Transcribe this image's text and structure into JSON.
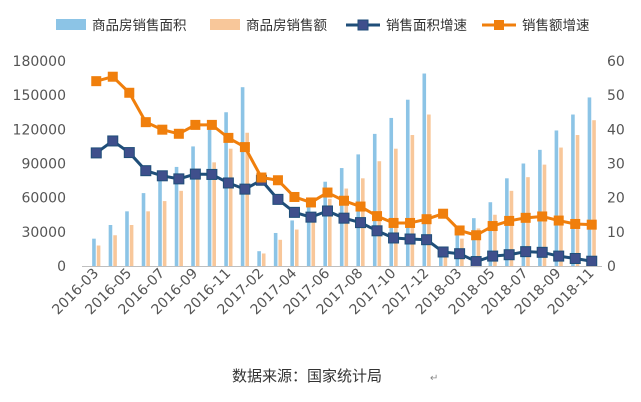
{
  "chart_data": {
    "type": "bar",
    "categories": [
      "2016-03",
      "2016-04",
      "2016-05",
      "2016-06",
      "2016-07",
      "2016-08",
      "2016-09",
      "2016-10",
      "2016-11",
      "2016-12",
      "2017-02",
      "2017-03",
      "2017-04",
      "2017-05",
      "2017-06",
      "2017-07",
      "2017-08",
      "2017-09",
      "2017-10",
      "2017-11",
      "2017-12",
      "2018-02",
      "2018-03",
      "2018-04",
      "2018-05",
      "2018-06",
      "2018-07",
      "2018-08",
      "2018-09",
      "2018-10",
      "2018-11"
    ],
    "x_tick_labels": [
      "2016-03",
      "2016-05",
      "2016-07",
      "2016-09",
      "2016-11",
      "2017-02",
      "2017-04",
      "2017-06",
      "2017-08",
      "2017-10",
      "2017-12",
      "2018-03",
      "2018-05",
      "2018-07",
      "2018-09",
      "2018-11"
    ],
    "series": [
      {
        "name": "商品房销售面积",
        "type": "bar",
        "axis": "left",
        "color": "#8cc4e6",
        "values": [
          24000,
          36000,
          48000,
          64000,
          81000,
          87000,
          105000,
          121000,
          135000,
          157000,
          13000,
          29000,
          40000,
          53000,
          74000,
          86000,
          98000,
          116000,
          130000,
          146000,
          169000,
          15000,
          31000,
          42000,
          56000,
          77000,
          90000,
          102000,
          119000,
          133000,
          148000
        ]
      },
      {
        "name": "商品房销售额",
        "type": "bar",
        "axis": "left",
        "color": "#f8c79a",
        "values": [
          18000,
          27000,
          36000,
          48000,
          57000,
          66000,
          78000,
          91000,
          103000,
          117000,
          11000,
          23000,
          32000,
          44000,
          59000,
          68000,
          77000,
          92000,
          103000,
          115000,
          133000,
          11000,
          24000,
          33000,
          45000,
          66000,
          78000,
          89000,
          104000,
          115000,
          128000
        ]
      },
      {
        "name": "销售面积增速",
        "type": "line",
        "axis": "right",
        "color": "#1f4e79",
        "values": [
          33.1,
          36.6,
          33.2,
          27.9,
          26.4,
          25.5,
          26.9,
          26.8,
          24.3,
          22.5,
          25.1,
          19.5,
          15.7,
          14.3,
          16.1,
          14.0,
          12.7,
          10.3,
          8.2,
          7.9,
          7.7,
          4.1,
          3.6,
          1.3,
          2.9,
          3.3,
          4.2,
          4.0,
          2.9,
          2.2,
          1.4
        ]
      },
      {
        "name": "销售额增速",
        "type": "line",
        "axis": "right",
        "color": "#f07f0c",
        "values": [
          54.1,
          55.4,
          50.7,
          42.1,
          39.9,
          38.7,
          41.3,
          41.3,
          37.5,
          34.8,
          25.9,
          25.1,
          20.2,
          18.6,
          21.5,
          19.1,
          17.4,
          14.6,
          12.6,
          12.6,
          13.7,
          15.3,
          10.4,
          9.0,
          11.7,
          13.2,
          14.1,
          14.5,
          13.3,
          12.3,
          12.1
        ]
      }
    ],
    "ylim_left": [
      0,
      180000
    ],
    "ylim_right": [
      0,
      60
    ],
    "y_left_ticks": [
      0,
      30000,
      60000,
      90000,
      120000,
      150000,
      180000
    ],
    "y_right_ticks": [
      0,
      10,
      20,
      30,
      40,
      50,
      60
    ],
    "legend_position": "top",
    "grid": false
  },
  "source_note": "数据来源：国家统计局",
  "return_mark": "↵"
}
